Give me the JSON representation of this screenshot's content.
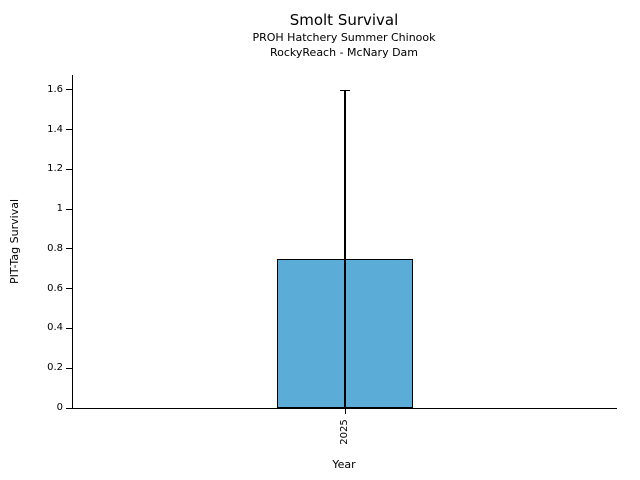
{
  "chart_data": {
    "type": "bar",
    "title": "Smolt Survival",
    "subtitle_lines": [
      "PROH Hatchery Summer Chinook",
      "RockyReach - McNary Dam"
    ],
    "xlabel": "Year",
    "ylabel": "PIT-Tag Survival",
    "categories": [
      "2025"
    ],
    "values": [
      0.75
    ],
    "error_bars": {
      "lower": [
        0
      ],
      "upper": [
        1.6
      ]
    },
    "ylim": [
      0,
      1.675
    ],
    "yticks": [
      0,
      0.2,
      0.4,
      0.6,
      0.8,
      1,
      1.2,
      1.4,
      1.6
    ],
    "ytick_labels": [
      "0",
      "0.2",
      "0.4",
      "0.6",
      "0.8",
      "1",
      "1.2",
      "1.4",
      "1.6"
    ],
    "grid": false,
    "legend": false,
    "bar_color": "#5BACD6",
    "bar_edge_color": "#000000",
    "axis_color": "#000000",
    "background_color": "#ffffff"
  }
}
